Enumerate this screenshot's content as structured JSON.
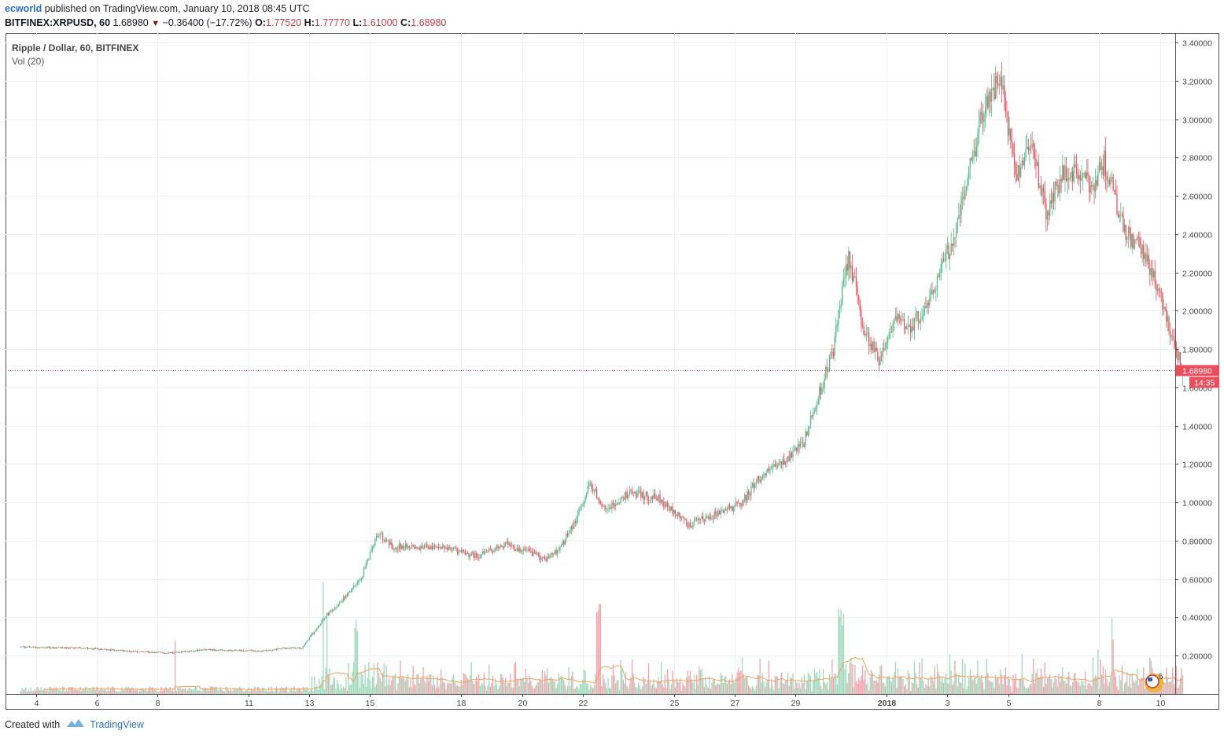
{
  "header": {
    "author": "ecworld",
    "published_text": "published on TradingView.com, January 10, 2018 08:45 UTC"
  },
  "symbol_bar": {
    "symbol": "BITFINEX:XRPUSD, 60",
    "last": "1.68980",
    "change": "−0.36400 (−17.72%)",
    "open_label": "O:",
    "open": "1.77520",
    "high_label": "H:",
    "high": "1.77770",
    "low_label": "L:",
    "low": "1.61000",
    "close_label": "C:",
    "close": "1.68980"
  },
  "legend": {
    "title": "Ripple / Dollar, 60, BITFINEX",
    "volume": "Vol (20)"
  },
  "footer": {
    "created_with": "Created with",
    "brand": "TradingView"
  },
  "colors": {
    "up": "#53b987",
    "down": "#eb4d5c",
    "vol_up": "#9ed9bc",
    "vol_down": "#f2a2aa",
    "ma": "#f5a05a",
    "grid": "#eef1f4",
    "axis": "#444444",
    "price_line": "#c23a4a",
    "price_label_bg": "#eb4d5c"
  },
  "chart_data": {
    "type": "candlestick",
    "interval_minutes": 60,
    "y_axis": {
      "min": 0.0,
      "max": 3.45,
      "ticks": [
        0.2,
        0.4,
        0.6,
        0.8,
        1.0,
        1.2,
        1.4,
        1.6,
        1.8,
        2.0,
        2.2,
        2.4,
        2.6,
        2.8,
        3.0,
        3.2,
        3.4
      ],
      "tick_labels": [
        "0.20000",
        "0.40000",
        "0.60000",
        "0.80000",
        "1.00000",
        "1.20000",
        "1.40000",
        "1.60000",
        "1.80000",
        "2.00000",
        "2.20000",
        "2.40000",
        "2.60000",
        "2.80000",
        "3.00000",
        "3.20000",
        "3.40000"
      ]
    },
    "x_axis": {
      "range": [
        "2017-12-03",
        "2018-01-10"
      ],
      "ticks": [
        {
          "label": "4",
          "date": "2017-12-04"
        },
        {
          "label": "6",
          "date": "2017-12-06"
        },
        {
          "label": "8",
          "date": "2017-12-08"
        },
        {
          "label": "11",
          "date": "2017-12-11"
        },
        {
          "label": "13",
          "date": "2017-12-13"
        },
        {
          "label": "15",
          "date": "2017-12-15"
        },
        {
          "label": "18",
          "date": "2017-12-18"
        },
        {
          "label": "20",
          "date": "2017-12-20"
        },
        {
          "label": "22",
          "date": "2017-12-22"
        },
        {
          "label": "25",
          "date": "2017-12-25"
        },
        {
          "label": "27",
          "date": "2017-12-27"
        },
        {
          "label": "29",
          "date": "2017-12-29"
        },
        {
          "label": "2018",
          "date": "2018-01-01",
          "bold": true
        },
        {
          "label": "3",
          "date": "2018-01-03"
        },
        {
          "label": "5",
          "date": "2018-01-05"
        },
        {
          "label": "8",
          "date": "2018-01-08"
        },
        {
          "label": "10",
          "date": "2018-01-10"
        }
      ]
    },
    "price_path": [
      [
        "2017-12-03",
        0.245
      ],
      [
        "2017-12-05",
        0.24
      ],
      [
        "2017-12-07",
        0.22
      ],
      [
        "2017-12-08",
        0.215
      ],
      [
        "2017-12-09",
        0.23
      ],
      [
        "2017-12-11",
        0.225
      ],
      [
        "2017-12-12",
        0.24
      ],
      [
        "2017-12-12",
        0.24
      ],
      [
        "2017-12-13",
        0.4
      ],
      [
        "2017-12-14",
        0.52
      ],
      [
        "2017-12-14",
        0.62
      ],
      [
        "2017-12-15",
        0.84
      ],
      [
        "2017-12-15",
        0.77
      ],
      [
        "2017-12-16",
        0.77
      ],
      [
        "2017-12-17",
        0.76
      ],
      [
        "2017-12-18",
        0.72
      ],
      [
        "2017-12-19",
        0.78
      ],
      [
        "2017-12-20",
        0.74
      ],
      [
        "2017-12-20",
        0.7
      ],
      [
        "2017-12-21",
        0.76
      ],
      [
        "2017-12-21",
        0.9
      ],
      [
        "2017-12-22",
        1.1
      ],
      [
        "2017-12-22",
        0.95
      ],
      [
        "2017-12-23",
        1.05
      ],
      [
        "2017-12-24",
        1.02
      ],
      [
        "2017-12-25",
        0.88
      ],
      [
        "2017-12-26",
        0.95
      ],
      [
        "2017-12-27",
        1.0
      ],
      [
        "2017-12-27",
        1.12
      ],
      [
        "2017-12-28",
        1.2
      ],
      [
        "2017-12-29",
        1.3
      ],
      [
        "2017-12-29",
        1.55
      ],
      [
        "2017-12-30",
        1.8
      ],
      [
        "2017-12-30",
        2.3
      ],
      [
        "2017-12-31",
        1.9
      ],
      [
        "2017-12-31",
        1.75
      ],
      [
        "2018-01-01",
        1.95
      ],
      [
        "2018-01-01",
        1.92
      ],
      [
        "2018-01-02",
        2.0
      ],
      [
        "2018-01-02",
        2.2
      ],
      [
        "2018-01-03",
        2.4
      ],
      [
        "2018-01-03",
        2.75
      ],
      [
        "2018-01-04",
        3.1
      ],
      [
        "2018-01-04",
        3.2
      ],
      [
        "2018-01-05",
        2.7
      ],
      [
        "2018-01-05",
        2.9
      ],
      [
        "2018-01-06",
        2.5
      ],
      [
        "2018-01-06",
        2.7
      ],
      [
        "2018-01-07",
        2.72
      ],
      [
        "2018-01-07",
        2.65
      ],
      [
        "2018-01-08",
        2.78
      ],
      [
        "2018-01-08",
        2.6
      ],
      [
        "2018-01-08",
        2.4
      ],
      [
        "2018-01-09",
        2.35
      ],
      [
        "2018-01-09",
        2.2
      ],
      [
        "2018-01-10",
        1.95
      ],
      [
        "2018-01-10",
        1.69
      ]
    ],
    "volume_panel": {
      "shares_price_axis": true,
      "ma_period": 20,
      "peaks": [
        {
          "date": "2017-12-08",
          "value": 0.39
        },
        {
          "date": "2017-12-13",
          "value": 0.6
        },
        {
          "date": "2017-12-14",
          "value": 0.46
        },
        {
          "date": "2017-12-22",
          "value": 0.55
        },
        {
          "date": "2017-12-22",
          "value": 0.5
        },
        {
          "date": "2017-12-30",
          "value": 0.44
        },
        {
          "date": "2017-12-30",
          "value": 0.48
        },
        {
          "date": "2018-01-08",
          "value": 0.41
        }
      ]
    },
    "last_price": 1.6898,
    "last_price_label": "1.68980",
    "countdown_label": "14:35",
    "grid": true
  }
}
